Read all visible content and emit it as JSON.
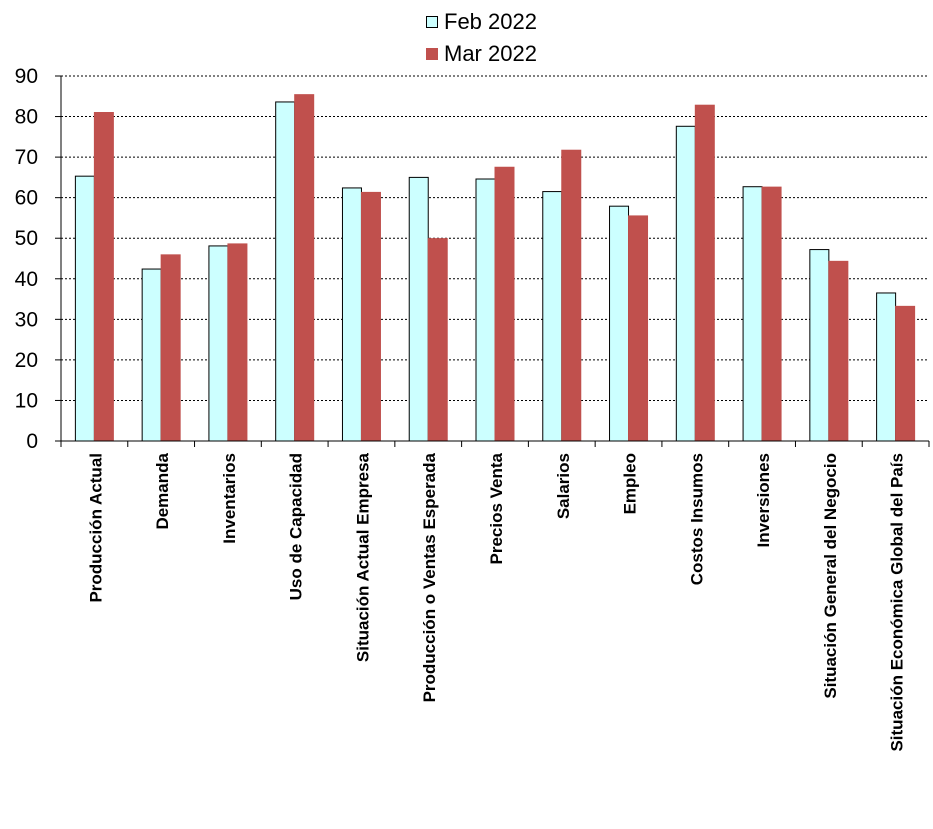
{
  "chart_data": {
    "type": "bar",
    "categories": [
      "Producción Actual",
      "Demanda",
      "Inventarios",
      "Uso de Capacidad",
      "Situación Actual Empresa",
      "Producción o Ventas Esperada",
      "Precios Venta",
      "Salarios",
      "Empleo",
      "Costos Insumos",
      "Inversiones",
      "Situación General del Negocio",
      "Situación Económica Global del País"
    ],
    "series": [
      {
        "name": "Feb 2022",
        "color": "#ccffff",
        "border": "#000000",
        "values": [
          65.3,
          42.4,
          48.1,
          83.6,
          62.4,
          65.0,
          64.6,
          61.5,
          57.9,
          77.6,
          62.7,
          47.2,
          36.5
        ]
      },
      {
        "name": "Mar 2022",
        "color": "#c0504d",
        "border": "#c0504d",
        "values": [
          81.0,
          45.9,
          48.6,
          85.4,
          61.3,
          49.9,
          67.5,
          71.7,
          55.5,
          82.8,
          62.6,
          44.3,
          33.2
        ]
      }
    ],
    "ylim": [
      0,
      90
    ],
    "yticks": [
      "0",
      "10",
      "20",
      "30",
      "40",
      "50",
      "60",
      "70",
      "80",
      "90"
    ],
    "grid": true,
    "legend_position": "top-center",
    "title": "",
    "xlabel": "",
    "ylabel": ""
  }
}
